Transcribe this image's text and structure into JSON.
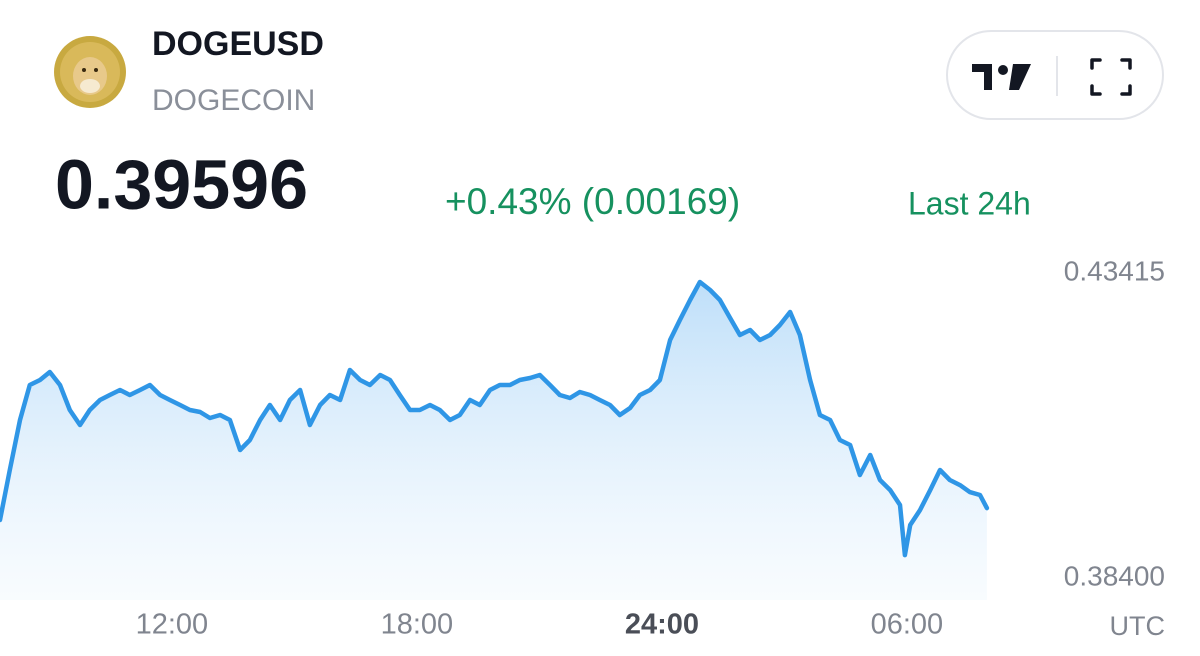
{
  "chart_data": {
    "type": "area",
    "title": "DOGEUSD",
    "subtitle": "DOGECOIN",
    "price": 0.39596,
    "change": "+0.43% (0.00169)",
    "period": "Last 24h",
    "x_label": "UTC",
    "color": "#2f96e6",
    "change_color": "#16915f",
    "x": [
      7.79,
      8.03,
      8.28,
      8.52,
      8.77,
      9.01,
      9.26,
      9.5,
      9.75,
      9.99,
      10.24,
      10.48,
      10.73,
      10.97,
      11.22,
      11.46,
      11.71,
      11.95,
      12.2,
      12.44,
      12.69,
      12.93,
      13.18,
      13.42,
      13.67,
      13.91,
      14.16,
      14.4,
      14.65,
      14.89,
      15.14,
      15.38,
      15.63,
      15.87,
      16.12,
      16.36,
      16.61,
      16.85,
      17.1,
      17.34,
      17.58,
      17.83,
      18.07,
      18.32,
      18.56,
      18.81,
      19.05,
      19.3,
      19.54,
      19.79,
      20.03,
      20.28,
      20.52,
      20.77,
      21.01,
      21.26,
      21.5,
      21.75,
      21.99,
      22.24,
      22.48,
      22.73,
      22.97,
      23.22,
      23.46,
      23.71,
      23.95,
      24.2,
      24.44,
      24.69,
      24.93,
      25.18,
      25.42,
      25.67,
      25.91,
      26.16,
      26.4,
      26.65,
      26.89,
      27.14,
      27.38,
      27.63,
      27.87,
      28.12,
      28.36,
      28.61,
      28.85,
      29.1,
      29.34,
      29.59,
      29.83,
      29.95,
      30.08,
      30.32,
      30.57,
      30.81,
      31.05,
      31.3,
      31.54,
      31.79,
      31.96
    ],
    "values": [
      0.39354,
      0.40176,
      0.40998,
      0.41574,
      0.41656,
      0.41787,
      0.41574,
      0.41162,
      0.40916,
      0.41162,
      0.41327,
      0.41409,
      0.41491,
      0.41409,
      0.41491,
      0.41574,
      0.41409,
      0.41327,
      0.41245,
      0.41162,
      0.4113,
      0.41031,
      0.4108,
      0.40998,
      0.40505,
      0.40669,
      0.40998,
      0.41245,
      0.40998,
      0.41327,
      0.41491,
      0.40916,
      0.41245,
      0.41409,
      0.41327,
      0.4182,
      0.41656,
      0.41574,
      0.41738,
      0.41656,
      0.41409,
      0.41162,
      0.41162,
      0.41245,
      0.41162,
      0.40998,
      0.4108,
      0.41327,
      0.41245,
      0.41491,
      0.41574,
      0.41574,
      0.41656,
      0.41689,
      0.41738,
      0.41574,
      0.41409,
      0.4136,
      0.41458,
      0.41409,
      0.41327,
      0.41245,
      0.4108,
      0.41195,
      0.41409,
      0.41491,
      0.41656,
      0.42313,
      0.42642,
      0.42971,
      0.43267,
      0.43135,
      0.42971,
      0.42675,
      0.42396,
      0.42478,
      0.42313,
      0.42396,
      0.4256,
      0.42774,
      0.42396,
      0.41656,
      0.4108,
      0.40998,
      0.40669,
      0.40587,
      0.40094,
      0.40423,
      0.40012,
      0.39847,
      0.39601,
      0.38778,
      0.39272,
      0.39518,
      0.39847,
      0.40176,
      0.40012,
      0.39929,
      0.39814,
      0.39765,
      0.39551
    ],
    "xlim": [
      7.79,
      32.28
    ],
    "xticks": [
      {
        "value": 12,
        "label": "12:00"
      },
      {
        "value": 18,
        "label": "18:00"
      },
      {
        "value": 24,
        "label": "24:00"
      },
      {
        "value": 30,
        "label": "06:00"
      }
    ],
    "ylim": [
      0.3804,
      0.4371
    ],
    "yticks": [
      0.43415,
      {
        "value": 0.384,
        "label": "0.38400"
      }
    ]
  }
}
